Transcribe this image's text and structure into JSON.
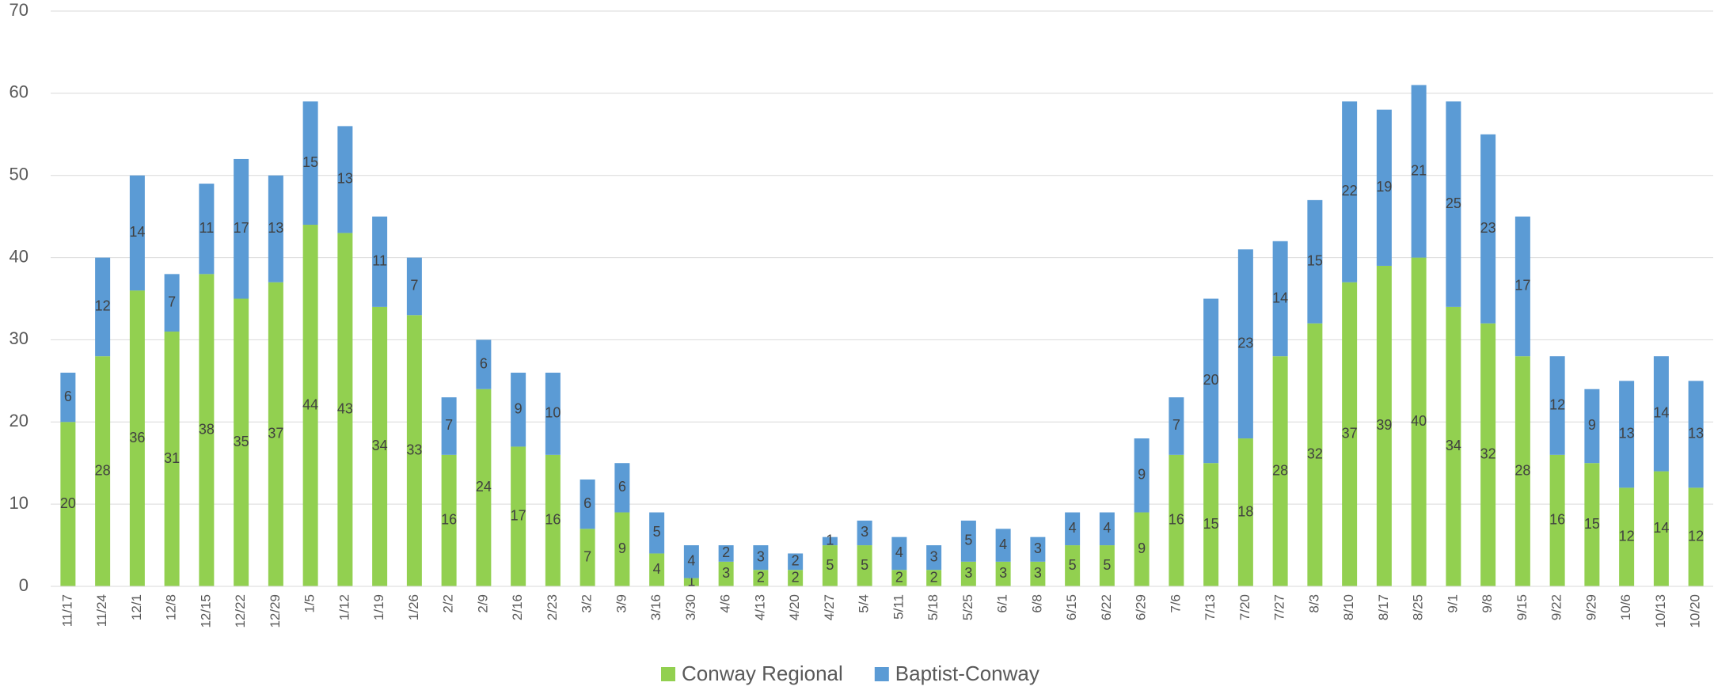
{
  "chart_data": {
    "type": "stacked_bar",
    "categories": [
      "11/17",
      "11/24",
      "12/1",
      "12/8",
      "12/15",
      "12/22",
      "12/29",
      "1/5",
      "1/12",
      "1/19",
      "1/26",
      "2/2",
      "2/9",
      "2/16",
      "2/23",
      "3/2",
      "3/9",
      "3/16",
      "3/30",
      "4/6",
      "4/13",
      "4/20",
      "4/27",
      "5/4",
      "5/11",
      "5/18",
      "5/25",
      "6/1",
      "6/8",
      "6/15",
      "6/22",
      "6/29",
      "7/6",
      "7/13",
      "7/20",
      "7/27",
      "8/3",
      "8/10",
      "8/17",
      "8/25",
      "9/1",
      "9/8",
      "9/15",
      "9/22",
      "9/29",
      "10/6",
      "10/13",
      "10/20"
    ],
    "series": [
      {
        "name": "Conway Regional",
        "color": "#92d050",
        "values": [
          20,
          28,
          36,
          31,
          38,
          35,
          37,
          44,
          43,
          34,
          33,
          16,
          24,
          17,
          16,
          7,
          9,
          4,
          1,
          3,
          2,
          2,
          5,
          5,
          2,
          2,
          3,
          3,
          3,
          5,
          5,
          9,
          16,
          15,
          18,
          28,
          32,
          37,
          39,
          40,
          34,
          32,
          28,
          16,
          15,
          12,
          14,
          12
        ]
      },
      {
        "name": "Baptist-Conway",
        "color": "#5b9bd5",
        "values": [
          6,
          12,
          14,
          7,
          11,
          17,
          13,
          15,
          13,
          11,
          7,
          7,
          6,
          9,
          10,
          6,
          6,
          5,
          4,
          2,
          3,
          2,
          1,
          3,
          4,
          3,
          5,
          4,
          3,
          4,
          4,
          9,
          7,
          20,
          23,
          14,
          15,
          22,
          19,
          21,
          25,
          23,
          17,
          12,
          9,
          13,
          14,
          13
        ]
      }
    ],
    "ylim": [
      0,
      70
    ],
    "yticks": [
      0,
      10,
      20,
      30,
      40,
      50,
      60,
      70
    ],
    "grid": true,
    "legend": "bottom"
  }
}
